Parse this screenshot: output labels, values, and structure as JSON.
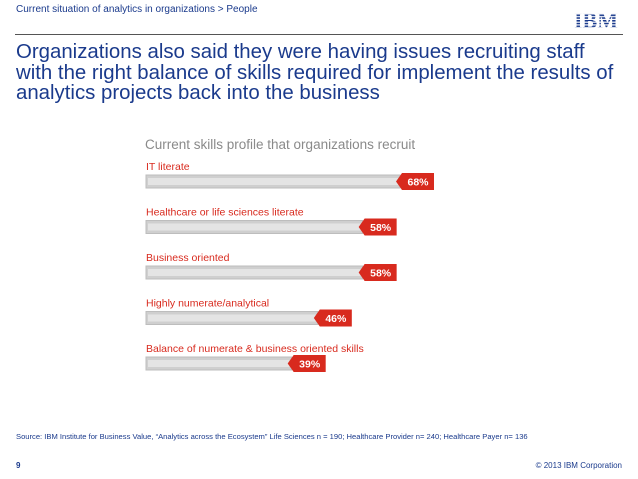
{
  "header": {
    "breadcrumb": "Current situation of analytics in organizations > People",
    "logo_text": "IBM"
  },
  "title": "Organizations also said they were having issues recruiting staff with the right balance of skills required for implement the results of analytics projects back into the business",
  "chart_data": {
    "type": "bar",
    "orientation": "horizontal",
    "title": "Current skills profile that organizations recruit",
    "categories": [
      "IT literate",
      "Healthcare or life sciences literate",
      "Business oriented",
      "Highly numerate/analytical",
      "Balance of numerate & business oriented skills"
    ],
    "values": [
      68,
      58,
      58,
      46,
      39
    ],
    "value_labels": [
      "68%",
      "58%",
      "58%",
      "46%",
      "39%"
    ],
    "xlim": [
      0,
      68
    ],
    "bar_color": "#cfcfcf",
    "label_color": "#d82a1e",
    "category_color": "#d82a1e"
  },
  "footer": {
    "source": "Source: IBM Institute for Business Value, “Analytics across the Ecosystem” Life Sciences n = 190;  Healthcare Provider n= 240; Healthcare Payer n= 136",
    "page_number": "9",
    "copyright": "© 2013 IBM Corporation"
  },
  "colors": {
    "brand_blue": "#1a3a8c",
    "accent_red": "#d82a1e"
  }
}
